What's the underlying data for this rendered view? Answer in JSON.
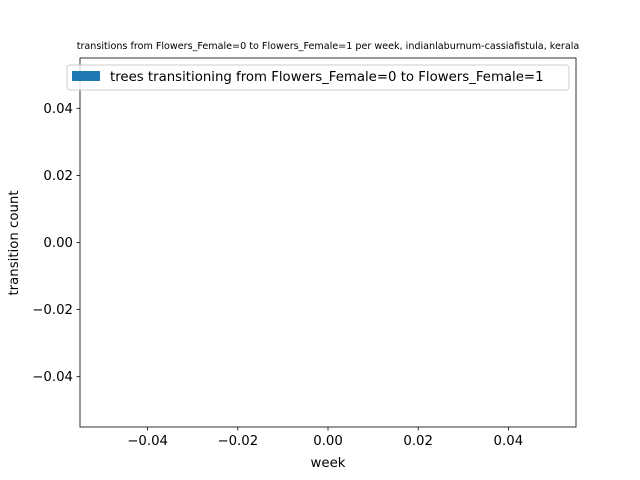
{
  "chart_data": {
    "type": "bar",
    "title": "transitions from Flowers_Female=0 to Flowers_Female=1 per week, indianlaburnum-cassiafistula, kerala",
    "xlabel": "week",
    "ylabel": "transition count",
    "xlim": [
      -0.055,
      0.055
    ],
    "ylim": [
      -0.055,
      0.055
    ],
    "xticks": [
      -0.04,
      -0.02,
      0.0,
      0.02,
      0.04
    ],
    "xtick_labels": [
      "−0.04",
      "−0.02",
      "0.00",
      "0.02",
      "0.04"
    ],
    "yticks": [
      -0.04,
      -0.02,
      0.0,
      0.02,
      0.04
    ],
    "ytick_labels": [
      "−0.04",
      "−0.02",
      "0.00",
      "0.02",
      "0.04"
    ],
    "grid": false,
    "legend_position": "top-right",
    "series": [
      {
        "name": "trees transitioning from Flowers_Female=0 to Flowers_Female=1",
        "color": "#1f77b4",
        "x": [],
        "values": []
      }
    ]
  }
}
